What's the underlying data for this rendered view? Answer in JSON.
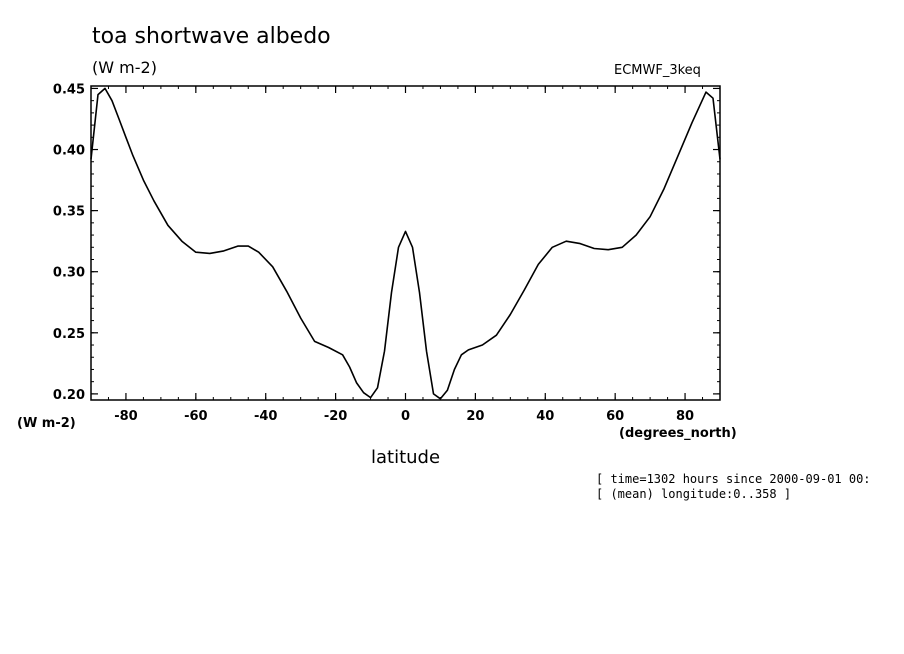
{
  "chart_data": {
    "type": "line",
    "title": "toa shortwave albedo",
    "units": "(W m-2)",
    "dataset": "ECMWF_3keq",
    "ylabel": "(W m-2)",
    "xlabel": "latitude",
    "xunits": "(degrees_north)",
    "xlim": [
      -90,
      90
    ],
    "ylim": [
      0.195,
      0.452
    ],
    "xticks": [
      -80,
      -60,
      -40,
      -20,
      0,
      20,
      40,
      60,
      80
    ],
    "xtick_labels": [
      "-80",
      "-60",
      "-40",
      "-20",
      "0",
      "20",
      "40",
      "60",
      "80"
    ],
    "yticks": [
      0.2,
      0.25,
      0.3,
      0.35,
      0.4,
      0.45
    ],
    "ytick_labels": [
      "0.20",
      "0.25",
      "0.30",
      "0.35",
      "0.40",
      "0.45"
    ],
    "grid": false,
    "series": [
      {
        "x": [
          -90,
          -88,
          -86,
          -84,
          -82,
          -80,
          -78,
          -75,
          -72,
          -68,
          -64,
          -60,
          -56,
          -52,
          -48,
          -45,
          -42,
          -38,
          -34,
          -30,
          -26,
          -22,
          -18,
          -16,
          -14,
          -12,
          -10,
          -8,
          -6,
          -4,
          -2,
          0,
          2,
          4,
          6,
          8,
          10,
          12,
          14,
          16,
          18,
          22,
          26,
          30,
          34,
          38,
          42,
          46,
          50,
          54,
          58,
          62,
          66,
          70,
          74,
          78,
          82,
          86,
          88,
          90
        ],
        "y": [
          0.392,
          0.445,
          0.45,
          0.44,
          0.425,
          0.41,
          0.395,
          0.375,
          0.358,
          0.338,
          0.325,
          0.316,
          0.315,
          0.317,
          0.321,
          0.321,
          0.316,
          0.304,
          0.284,
          0.262,
          0.243,
          0.238,
          0.232,
          0.222,
          0.209,
          0.201,
          0.197,
          0.205,
          0.235,
          0.283,
          0.32,
          0.333,
          0.32,
          0.283,
          0.235,
          0.2,
          0.196,
          0.203,
          0.22,
          0.232,
          0.236,
          0.24,
          0.248,
          0.265,
          0.285,
          0.306,
          0.32,
          0.325,
          0.323,
          0.319,
          0.318,
          0.32,
          0.33,
          0.345,
          0.368,
          0.395,
          0.422,
          0.447,
          0.442,
          0.392
        ]
      }
    ],
    "annotations": {
      "time": "[ time=1302 hours since 2000-09-01 00:",
      "longitude": "[ (mean) longitude:0..358 ]"
    }
  }
}
